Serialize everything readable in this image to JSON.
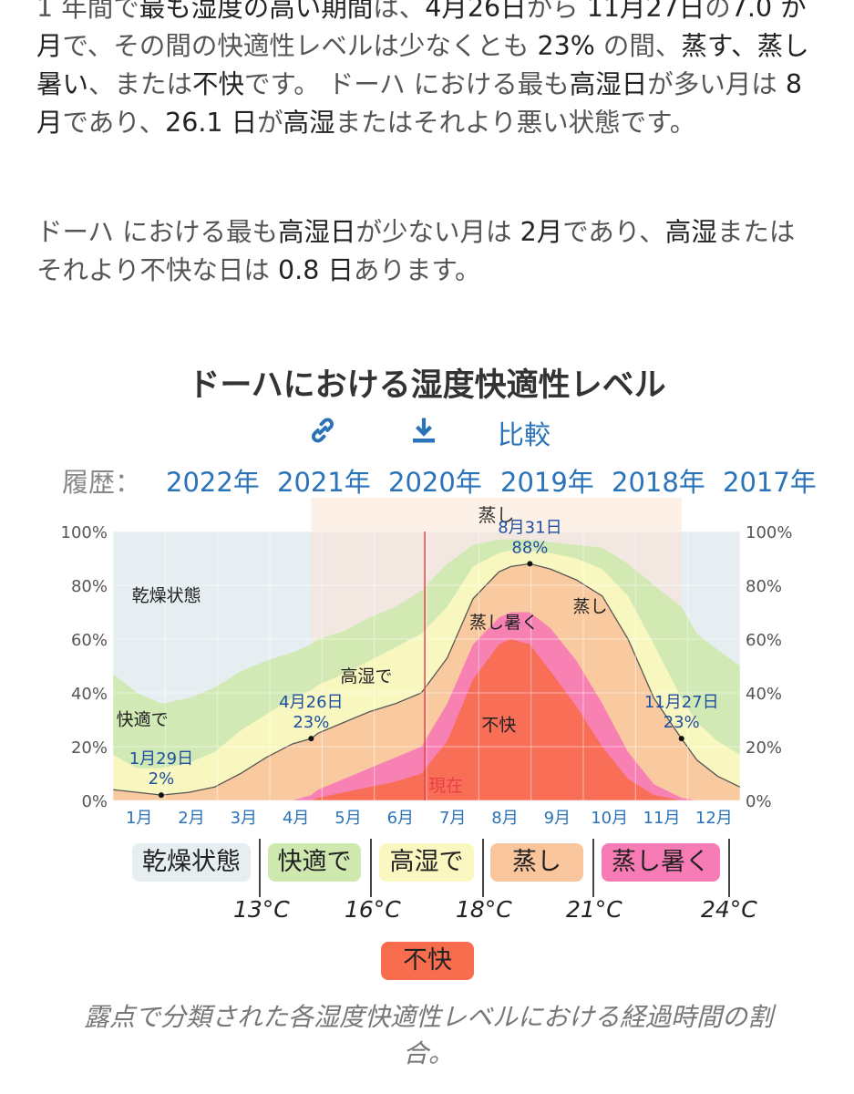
{
  "paragraphs": {
    "p1_segments": [
      {
        "t": "1 年間で",
        "b": false
      },
      {
        "t": "最も湿度の高い期間",
        "b": true
      },
      {
        "t": "は、",
        "b": false
      },
      {
        "t": "4月26日",
        "b": true
      },
      {
        "t": "から ",
        "b": false
      },
      {
        "t": "11月27日",
        "b": true
      },
      {
        "t": "の",
        "b": false
      },
      {
        "t": "7.0 か月",
        "b": true
      },
      {
        "t": "で、その間の快適性レベルは少なくとも ",
        "b": false
      },
      {
        "t": "23%",
        "b": true
      },
      {
        "t": " の間、",
        "b": false
      },
      {
        "t": "蒸す、蒸し暑い",
        "b": true
      },
      {
        "t": "、または",
        "b": false
      },
      {
        "t": "不快",
        "b": true
      },
      {
        "t": "です。 ドーハ における最も",
        "b": false
      },
      {
        "t": "高湿日",
        "b": true
      },
      {
        "t": "が多い月は ",
        "b": false
      },
      {
        "t": "8月",
        "b": true
      },
      {
        "t": "であり、",
        "b": false
      },
      {
        "t": "26.1 日",
        "b": true
      },
      {
        "t": "が",
        "b": false
      },
      {
        "t": "高湿",
        "b": true
      },
      {
        "t": "またはそれより悪い状態です。",
        "b": false
      }
    ],
    "p2_segments": [
      {
        "t": "ドーハ における最も",
        "b": false
      },
      {
        "t": "高湿日",
        "b": true
      },
      {
        "t": "が少ない月は ",
        "b": false
      },
      {
        "t": "2月",
        "b": true
      },
      {
        "t": "であり、",
        "b": false
      },
      {
        "t": "高湿",
        "b": true
      },
      {
        "t": "またはそれより不快な日は ",
        "b": false
      },
      {
        "t": "0.8 日",
        "b": true
      },
      {
        "t": "あります。",
        "b": false
      }
    ]
  },
  "toolbar": {
    "link_icon": "link-icon",
    "download_icon": "download-icon",
    "compare_label": "比較"
  },
  "history": {
    "label": "履歴：",
    "years": [
      "2022年",
      "2021年",
      "2020年",
      "2019年",
      "2018年",
      "2017年"
    ]
  },
  "colors": {
    "dry": "#e6eef2",
    "comfortable": "#cfe8b0",
    "humid": "#fbf7c0",
    "muggy": "#f9c59c",
    "oppressive": "#f77bb5",
    "miserable": "#f96d4f",
    "link": "#2a73b8",
    "now_line": "#e8404a",
    "season": "#fbe3d4"
  },
  "legend": {
    "items": [
      "乾燥状態",
      "快適で",
      "高湿で",
      "蒸し",
      "蒸し暑く",
      "不快"
    ],
    "thresholds": [
      "13°C",
      "16°C",
      "18°C",
      "21°C",
      "24°C"
    ]
  },
  "caption": "露点で分類された各湿度快適性レベルにおける経過時間の割合。",
  "chart_data": {
    "type": "area",
    "title": "ドーハにおける湿度快適性レベル",
    "xlabel": "",
    "ylabel": "",
    "ylim": [
      0,
      100
    ],
    "y_ticks": [
      "0%",
      "20%",
      "40%",
      "60%",
      "80%",
      "100%"
    ],
    "x_ticks": [
      "1月",
      "2月",
      "3月",
      "4月",
      "5月",
      "6月",
      "7月",
      "8月",
      "9月",
      "10月",
      "11月",
      "12月"
    ],
    "x_domain_days": [
      1,
      365
    ],
    "day_of_year": [
      1,
      15,
      29,
      45,
      60,
      75,
      90,
      105,
      116,
      120,
      135,
      150,
      165,
      180,
      195,
      210,
      225,
      232,
      243,
      255,
      270,
      285,
      300,
      315,
      331,
      340,
      352,
      365
    ],
    "series": [
      {
        "name": "不快",
        "values": [
          0,
          0,
          0,
          0,
          0,
          0,
          0,
          0,
          0,
          1,
          3,
          5,
          7,
          10,
          22,
          45,
          58,
          60,
          58,
          48,
          35,
          20,
          8,
          2,
          0,
          0,
          0,
          0
        ]
      },
      {
        "name": "蒸し暑く",
        "values": [
          0,
          0,
          0,
          0,
          0,
          0,
          0,
          0,
          2,
          4,
          8,
          12,
          16,
          20,
          36,
          58,
          68,
          70,
          70,
          64,
          52,
          36,
          18,
          6,
          1,
          0,
          0,
          0
        ]
      },
      {
        "name": "蒸し",
        "values": [
          4,
          3,
          2,
          3,
          5,
          10,
          16,
          21,
          23,
          25,
          29,
          33,
          36,
          40,
          53,
          75,
          85,
          87,
          88,
          86,
          82,
          76,
          60,
          38,
          23,
          15,
          9,
          5
        ]
      },
      {
        "name": "高湿で",
        "values": [
          17,
          12,
          12,
          14,
          18,
          26,
          32,
          38,
          41,
          43,
          47,
          52,
          57,
          62,
          72,
          87,
          92,
          93,
          93,
          92,
          90,
          86,
          76,
          58,
          38,
          29,
          22,
          17
        ]
      },
      {
        "name": "快適で",
        "values": [
          47,
          40,
          36,
          38,
          42,
          48,
          52,
          55,
          58,
          60,
          63,
          68,
          72,
          78,
          88,
          95,
          97,
          97,
          97,
          96,
          95,
          94,
          88,
          80,
          72,
          62,
          56,
          50
        ]
      }
    ],
    "now_day": 182,
    "season_band": {
      "start_day": 116,
      "end_day": 331,
      "label": "蒸し"
    },
    "annotations": [
      {
        "label": "1月29日",
        "value_label": "2%",
        "day": 29,
        "value": 2
      },
      {
        "label": "4月26日",
        "value_label": "23%",
        "day": 116,
        "value": 23
      },
      {
        "label": "8月31日",
        "value_label": "88%",
        "day": 243,
        "value": 88
      },
      {
        "label": "11月27日",
        "value_label": "23%",
        "day": 331,
        "value": 23
      }
    ],
    "region_labels": [
      {
        "text": "乾燥状態",
        "day": 32,
        "value": 74
      },
      {
        "text": "快適で",
        "day": 18,
        "value": 28
      },
      {
        "text": "高湿で",
        "day": 148,
        "value": 44
      },
      {
        "text": "蒸し",
        "day": 278,
        "value": 70
      },
      {
        "text": "蒸し暑く",
        "day": 228,
        "value": 64
      },
      {
        "text": "不快",
        "day": 225,
        "value": 26
      }
    ],
    "now_label": "現在"
  }
}
